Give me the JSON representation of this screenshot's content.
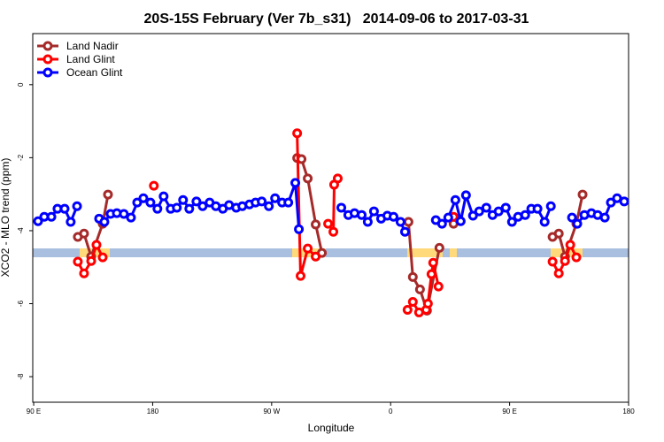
{
  "chart_data": {
    "type": "line",
    "title": "20S-15S February (Ver 7b_s31)   2014-09-06 to 2017-03-31",
    "x_label": "Longitude",
    "y_label": "XCO2 - MLO trend (ppm)",
    "xlim": [
      89.3,
      540
    ],
    "ylim": [
      -8.7,
      1.4
    ],
    "xticks": [
      {
        "value": 90,
        "label": "90 E"
      },
      180,
      {
        "value": 270,
        "label": "90 W"
      },
      {
        "value": 360,
        "label": "0"
      },
      {
        "value": 450,
        "label": "90 E"
      },
      {
        "value": 540,
        "label": "180"
      }
    ],
    "yticks": [
      0,
      -2,
      -4,
      -6,
      -8
    ],
    "legend": "top-left",
    "series": [
      {
        "name": "Land Nadir",
        "color": "#a52a2a",
        "x": [
          123.4,
          128.1,
          133.5,
          142.2,
          146.2,
          null,
          289.3,
          292.6,
          297.3,
          303.3,
          308,
          null,
          373.5,
          376.8,
          382.2,
          387.5,
          396.9,
          null,
          407.6,
          null,
          482.5,
          487.2,
          491.9,
          500.5,
          505.2
        ],
        "values": [
          -4.17,
          -4.08,
          -4.71,
          -3.81,
          -3.01,
          null,
          -2.01,
          -2.04,
          -2.57,
          -3.83,
          -4.61,
          null,
          -3.76,
          -5.27,
          -5.61,
          -6.19,
          -4.47,
          null,
          -3.81,
          null,
          -4.17,
          -4.08,
          -4.71,
          -3.81,
          -3.01
        ]
      },
      {
        "name": "Land Glint",
        "color": "#ff0000",
        "x": [
          123.4,
          128.1,
          133.5,
          137.5,
          142.2,
          null,
          180.9,
          null,
          289.3,
          291.9,
          297.3,
          303.3,
          null,
          312.7,
          316.7,
          317.3,
          320,
          null,
          372.8,
          376.8,
          381.5,
          386.9,
          388.2,
          390.9,
          392.2,
          396.2,
          null,
          407.6,
          null,
          482.5,
          487.2,
          491.9,
          495.9,
          500.5
        ],
        "values": [
          -4.85,
          -5.17,
          -4.83,
          -4.39,
          -4.73,
          null,
          -2.77,
          null,
          -1.33,
          -5.24,
          -4.49,
          -4.71,
          null,
          -3.81,
          -4.03,
          -2.74,
          -2.57,
          null,
          -6.17,
          -5.95,
          -6.24,
          -6.17,
          -6.0,
          -5.19,
          -4.88,
          -5.53,
          null,
          -3.62,
          null,
          -4.85,
          -5.17,
          -4.83,
          -4.39,
          -4.73
        ]
      },
      {
        "name": "Ocean Glint",
        "color": "#0000ff",
        "x": [
          93.3,
          98,
          103.4,
          108,
          113.4,
          118,
          122.8,
          null,
          139.5,
          143.5,
          148.2,
          152.9,
          158.2,
          163.6,
          168.3,
          173,
          178.3,
          183.6,
          188.3,
          193.6,
          198.3,
          203,
          207.7,
          213.1,
          217.8,
          223.1,
          227.8,
          233.1,
          237.8,
          243.2,
          247.8,
          253.2,
          257.8,
          262.5,
          267.9,
          272.6,
          277.9,
          282.6,
          287.9,
          290.6,
          null,
          322.7,
          328,
          332.7,
          338.1,
          342.7,
          347.4,
          352.8,
          357.5,
          362.2,
          367.5,
          370.9,
          null,
          394.2,
          398.9,
          403.6,
          409,
          413,
          417,
          422.3,
          427,
          432.4,
          437.1,
          441.7,
          447.1,
          451.8,
          456.4,
          461.8,
          466.4,
          471.1,
          476.5,
          481.2,
          null,
          497.2,
          501.2,
          506.6,
          511.9,
          516.6,
          522,
          526.6,
          531.3,
          536.7
        ],
        "values": [
          -3.74,
          -3.62,
          -3.62,
          -3.4,
          -3.4,
          -3.76,
          -3.33,
          null,
          -3.67,
          -3.76,
          -3.54,
          -3.52,
          -3.54,
          -3.64,
          -3.23,
          -3.11,
          -3.23,
          -3.4,
          -3.06,
          -3.4,
          -3.37,
          -3.16,
          -3.4,
          -3.2,
          -3.33,
          -3.23,
          -3.33,
          -3.4,
          -3.3,
          -3.37,
          -3.33,
          -3.28,
          -3.23,
          -3.2,
          -3.33,
          -3.11,
          -3.23,
          -3.23,
          -2.69,
          -3.96,
          null,
          -3.37,
          -3.57,
          -3.52,
          -3.57,
          -3.76,
          -3.47,
          -3.67,
          -3.59,
          -3.62,
          -3.76,
          -4.03,
          null,
          -3.71,
          -3.81,
          -3.64,
          -3.16,
          -3.74,
          -3.03,
          -3.59,
          -3.47,
          -3.37,
          -3.57,
          -3.47,
          -3.37,
          -3.76,
          -3.62,
          -3.57,
          -3.4,
          -3.4,
          -3.76,
          -3.33,
          null,
          -3.64,
          -3.81,
          -3.57,
          -3.52,
          -3.57,
          -3.64,
          -3.23,
          -3.11,
          -3.2
        ]
      }
    ]
  }
}
